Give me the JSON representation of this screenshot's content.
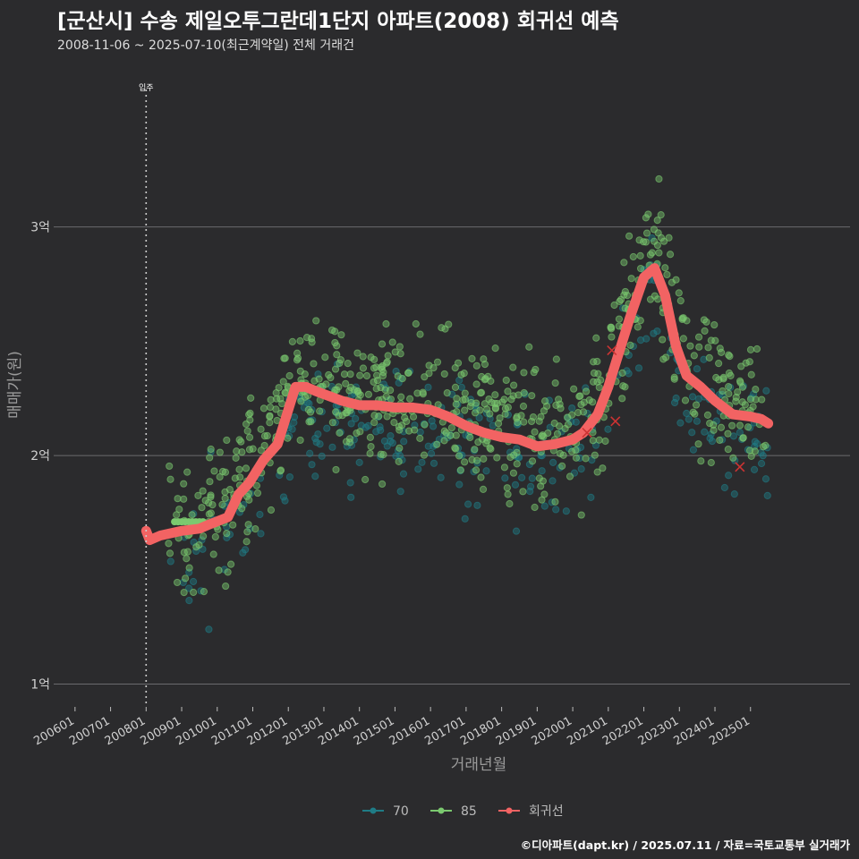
{
  "chart_data": {
    "type": "scatter",
    "title": "[군산시] 수송 제일오투그란데1단지 아파트(2008) 회귀선 예측",
    "subtitle": "2008-11-06 ~ 2025-07-10(최근계약일) 전체 거래건",
    "xlabel": "거래년월",
    "ylabel": "매매가(원)",
    "caption": "©디아파트(dapt.kr) / 2025.07.11 / 자료=국토교통부 실거래가",
    "x_tick_labels": [
      "200601",
      "200701",
      "200801",
      "200901",
      "201001",
      "201101",
      "201201",
      "201301",
      "201401",
      "201501",
      "201601",
      "201701",
      "201801",
      "201901",
      "202001",
      "202101",
      "202201",
      "202301",
      "202401",
      "202501"
    ],
    "x_tick_years": [
      2006,
      2007,
      2008,
      2009,
      2010,
      2011,
      2012,
      2013,
      2014,
      2015,
      2016,
      2017,
      2018,
      2019,
      2020,
      2021,
      2022,
      2023,
      2024,
      2025
    ],
    "xlim": [
      2005.4,
      2027.8
    ],
    "y_ticks": [
      1,
      2,
      3
    ],
    "y_tick_labels": [
      "1억",
      "2억",
      "3억"
    ],
    "ylim": [
      0.9,
      3.68
    ],
    "y_unit": "억",
    "annotation": {
      "label": "입주",
      "x": 2008.0
    },
    "legend": {
      "position": "bottom",
      "entries": [
        {
          "label": "70",
          "color": "#1f7c86"
        },
        {
          "label": "85",
          "color": "#7bc96f"
        },
        {
          "label": "회귀선",
          "color": "#f26363"
        }
      ]
    },
    "series": [
      {
        "name": "70",
        "color": "#1f7c86",
        "scatter_seed": 11,
        "scatter_count": 300,
        "spread": 0.13,
        "offset": -0.1
      },
      {
        "name": "85",
        "color": "#7bc96f",
        "scatter_seed": 29,
        "scatter_count": 700,
        "spread": 0.15,
        "offset": 0.05
      },
      {
        "name": "회귀선",
        "color": "#f26363",
        "type": "line",
        "x": [
          2008.0,
          2008.1,
          2008.4,
          2009.0,
          2009.5,
          2009.8,
          2010.3,
          2010.6,
          2010.9,
          2011.3,
          2011.7,
          2012.0,
          2012.2,
          2012.5,
          2012.8,
          2013.5,
          2014.0,
          2014.5,
          2015.0,
          2015.5,
          2016.0,
          2016.5,
          2017.0,
          2017.5,
          2018.0,
          2018.5,
          2019.0,
          2019.5,
          2020.0,
          2020.3,
          2020.7,
          2021.0,
          2021.3,
          2021.6,
          2022.0,
          2022.3,
          2022.6,
          2022.9,
          2023.2,
          2023.6,
          2024.0,
          2024.5,
          2025.0,
          2025.3,
          2025.5
        ],
        "y": [
          1.67,
          1.63,
          1.65,
          1.67,
          1.68,
          1.7,
          1.73,
          1.83,
          1.88,
          1.98,
          2.05,
          2.2,
          2.3,
          2.3,
          2.28,
          2.24,
          2.22,
          2.22,
          2.21,
          2.21,
          2.2,
          2.17,
          2.13,
          2.1,
          2.08,
          2.07,
          2.04,
          2.05,
          2.07,
          2.1,
          2.18,
          2.3,
          2.45,
          2.6,
          2.78,
          2.82,
          2.7,
          2.48,
          2.35,
          2.3,
          2.24,
          2.18,
          2.17,
          2.16,
          2.14
        ]
      },
      {
        "name": "85-recent-highlight",
        "color": "#7bc96f",
        "type": "points",
        "x": [
          2008.8,
          2008.9,
          2009.0,
          2009.1,
          2009.2,
          2009.3,
          2009.4,
          2009.5,
          2009.6
        ],
        "y": [
          1.71,
          1.71,
          1.71,
          1.71,
          1.71,
          1.71,
          1.71,
          1.71,
          1.71
        ]
      },
      {
        "name": "marked-points",
        "color": "#cc3333",
        "type": "x-marks",
        "x": [
          2020.4,
          2021.1,
          2021.2,
          2024.7
        ],
        "y": [
          2.1,
          2.46,
          2.15,
          1.95
        ]
      }
    ]
  }
}
